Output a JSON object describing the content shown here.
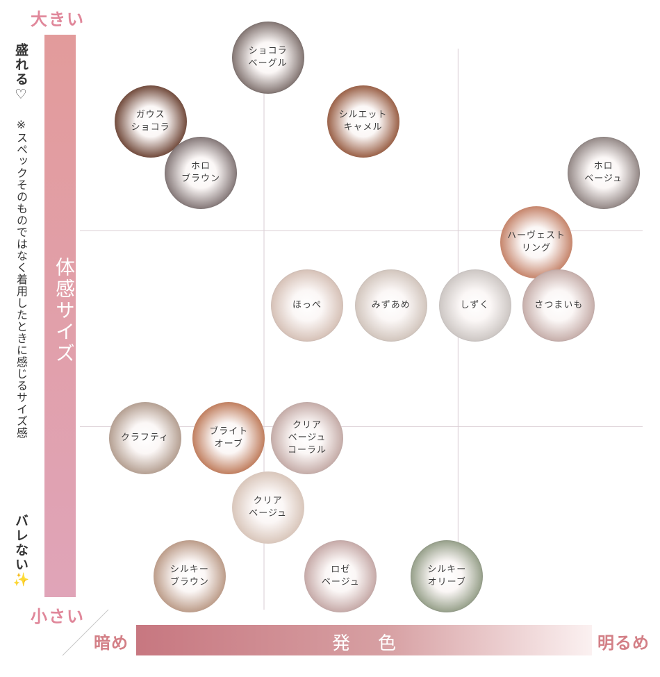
{
  "y_axis": {
    "top_label": "大きい",
    "bottom_label": "小さい",
    "bar_label": "体感サイズ",
    "side_top": "盛れる♡",
    "side_note": "※スペックそのものではなく着用したときに感じるサイズ感",
    "side_bottom": "バレない✨"
  },
  "x_axis": {
    "bar_label": "発色",
    "left_label": "暗め",
    "right_label": "明るめ"
  },
  "colors": {
    "accent_pink": "#e0879a",
    "bar_pink": "#e29b9b",
    "x_bar_dark": "#c77780",
    "grid": "#d9cdd3"
  },
  "chart_data": {
    "type": "scatter",
    "title": "",
    "xlabel": "発色",
    "ylabel": "体感サイズ",
    "xlim": [
      0,
      10
    ],
    "ylim": [
      0,
      10
    ],
    "grid": true,
    "points": [
      {
        "label": "ショコラ\nベーグル",
        "x": 3.3,
        "y": 9.6,
        "rim": "#111111",
        "iris": "#8a7d7a"
      },
      {
        "label": "ガウス\nショコラ",
        "x": 1.2,
        "y": 8.5,
        "rim": "#4a2c24",
        "iris": "#7a5547"
      },
      {
        "label": "シルエット\nキャメル",
        "x": 5.0,
        "y": 8.5,
        "rim": "#7c4a36",
        "iris": "#a06a52"
      },
      {
        "label": "ホロ\nブラウン",
        "x": 2.1,
        "y": 7.6,
        "rim": "#1c1c1c",
        "iris": "#8c8080"
      },
      {
        "label": "ホロ\nベージュ",
        "x": 9.3,
        "y": 7.6,
        "rim": "#1c1c1c",
        "iris": "#9a8f8d"
      },
      {
        "label": "ハーヴェスト\nリング",
        "x": 8.1,
        "y": 6.4,
        "rim": "#b86c50",
        "iris": "#c98c74"
      },
      {
        "label": "ほっぺ",
        "x": 4.0,
        "y": 5.3,
        "rim": "#8c8a90",
        "iris": "#d8c4ba"
      },
      {
        "label": "みずあめ",
        "x": 5.5,
        "y": 5.3,
        "rim": "#8a8a8e",
        "iris": "#d4c8c0"
      },
      {
        "label": "しずく",
        "x": 7.0,
        "y": 5.3,
        "rim": "#8a8a90",
        "iris": "#cfc9c6"
      },
      {
        "label": "さつまいも",
        "x": 8.5,
        "y": 5.3,
        "rim": "#7c7078",
        "iris": "#c9b2ae"
      },
      {
        "label": "クラフティ",
        "x": 1.1,
        "y": 3.0,
        "rim": "#9a8a82",
        "iris": "#b9a598"
      },
      {
        "label": "ブライト\nオーブ",
        "x": 2.6,
        "y": 3.0,
        "rim": "#a2583c",
        "iris": "#c48668"
      },
      {
        "label": "クリア\nベージュ\nコーラル",
        "x": 4.0,
        "y": 3.0,
        "rim": "#8e8a8c",
        "iris": "#c8b0ac"
      },
      {
        "label": "クリア\nベージュ",
        "x": 3.3,
        "y": 1.8,
        "rim": "#c7bcb8",
        "iris": "#dbc9be"
      },
      {
        "label": "シルキー\nブラウン",
        "x": 1.9,
        "y": 0.6,
        "rim": "#9f7e6d",
        "iris": "#c0a290"
      },
      {
        "label": "ロゼ\nベージュ",
        "x": 4.6,
        "y": 0.6,
        "rim": "#8c8488",
        "iris": "#c9aeac"
      },
      {
        "label": "シルキー\nオリーブ",
        "x": 6.5,
        "y": 0.6,
        "rim": "#3c3c3c",
        "iris": "#9ca590"
      }
    ]
  }
}
